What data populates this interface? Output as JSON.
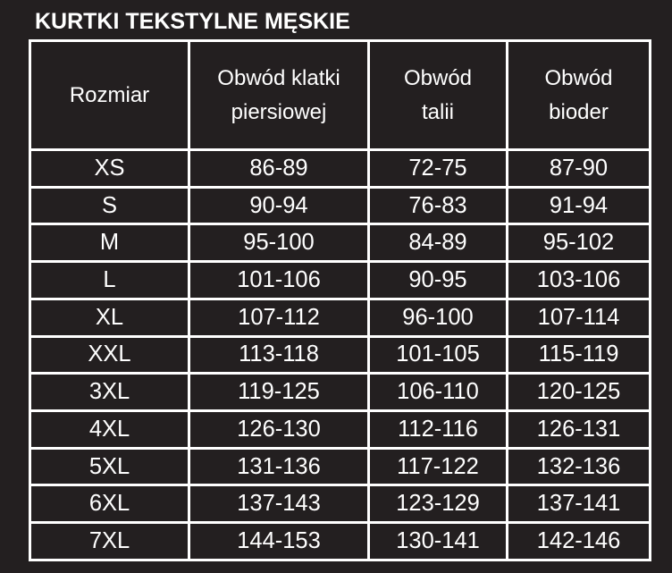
{
  "title": "KURTKI TEKSTYLNE MĘSKIE",
  "headers": [
    {
      "line1": "Rozmiar",
      "line2": ""
    },
    {
      "line1": "Obwód klatki",
      "line2": "piersiowej"
    },
    {
      "line1": "Obwód",
      "line2": "talii"
    },
    {
      "line1": "Obwód",
      "line2": "bioder"
    }
  ],
  "rows": [
    [
      "XS",
      "86-89",
      "72-75",
      "87-90"
    ],
    [
      "S",
      "90-94",
      "76-83",
      "91-94"
    ],
    [
      "M",
      "95-100",
      "84-89",
      "95-102"
    ],
    [
      "L",
      "101-106",
      "90-95",
      "103-106"
    ],
    [
      "XL",
      "107-112",
      "96-100",
      "107-114"
    ],
    [
      "XXL",
      "113-118",
      "101-105",
      "115-119"
    ],
    [
      "3XL",
      "119-125",
      "106-110",
      "120-125"
    ],
    [
      "4XL",
      "126-130",
      "112-116",
      "126-131"
    ],
    [
      "5XL",
      "131-136",
      "117-122",
      "132-136"
    ],
    [
      "6XL",
      "137-143",
      "123-129",
      "137-141"
    ],
    [
      "7XL",
      "144-153",
      "130-141",
      "142-146"
    ]
  ]
}
